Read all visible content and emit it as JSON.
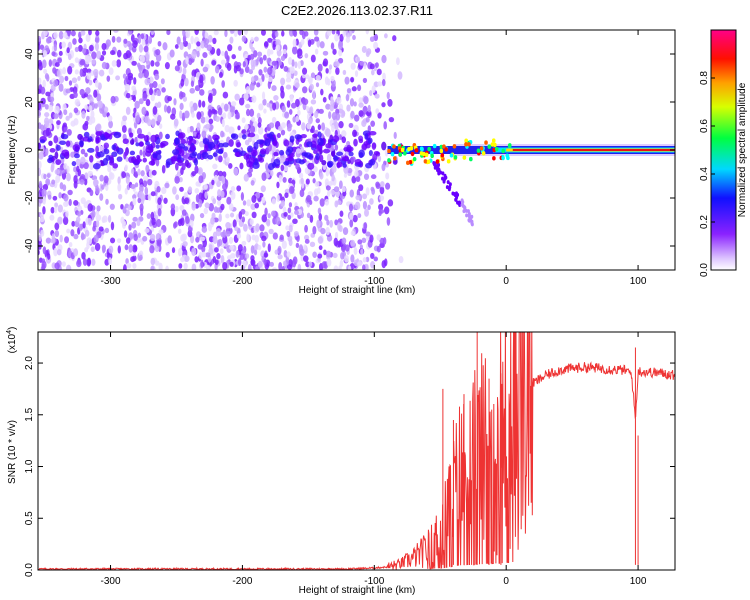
{
  "title": "C2E2.2026.113.02.37.R11",
  "chart_data": [
    {
      "type": "heatmap",
      "panel": "spectrogram",
      "xlabel": "Height of straight line (km)",
      "ylabel": "Frequency (Hz)",
      "xlim": [
        -355,
        128
      ],
      "ylim": [
        -50,
        50
      ],
      "xticks": [
        -300,
        -200,
        -100,
        0,
        100
      ],
      "xtick_labels": [
        "-300",
        "-200",
        "-100",
        "0",
        "100"
      ],
      "yticks": [
        -40,
        -20,
        0,
        20,
        40
      ],
      "ytick_labels": [
        "-40",
        "-20",
        "0",
        "20",
        "40"
      ],
      "colorbar": {
        "label": "Normalized spectral amplitude",
        "range": [
          0,
          1
        ],
        "ticks": [
          0.0,
          0.2,
          0.4,
          0.6,
          0.8
        ],
        "tick_labels": [
          "0.0",
          "0.2",
          "0.4",
          "0.6",
          "0.8"
        ],
        "colors": [
          "#ffffff",
          "#cc99ff",
          "#7f00ff",
          "#0000ff",
          "#00ffff",
          "#00ff00",
          "#ffff00",
          "#ff7f00",
          "#ff0000",
          "#ff007f"
        ]
      },
      "description_points": {
        "noise_region_x": [
          -355,
          -90
        ],
        "tone_x": [
          -90,
          128
        ],
        "tone_center_hz": 0,
        "branch_x": [
          -55,
          -25
        ],
        "branch_end_hz": -30
      }
    },
    {
      "type": "line",
      "panel": "snr",
      "xlabel": "Height of straight line (km)",
      "ylabel": "SNR (10 * v/v)",
      "yscale_label": "(x10",
      "yscale_exp": "4",
      "yscale_close": ")",
      "xlim": [
        -355,
        128
      ],
      "ylim": [
        0,
        2.3
      ],
      "xticks": [
        -300,
        -200,
        -100,
        0,
        100
      ],
      "xtick_labels": [
        "-300",
        "-200",
        "-100",
        "0",
        "100"
      ],
      "yticks": [
        0.0,
        0.5,
        1.0,
        1.5,
        2.0
      ],
      "ytick_labels": [
        "0.0",
        "0.5",
        "1.0",
        "1.5",
        "2.0"
      ],
      "line_color": "#ee3333",
      "series": [
        {
          "name": "SNR",
          "x": [
            -355,
            -300,
            -250,
            -200,
            -150,
            -120,
            -100,
            -90,
            -80,
            -70,
            -60,
            -50,
            -45,
            -40,
            -35,
            -30,
            -25,
            -20,
            -15,
            -10,
            -5,
            0,
            5,
            10,
            20,
            30,
            40,
            50,
            60,
            70,
            80,
            90,
            95,
            98,
            100,
            110,
            120,
            128
          ],
          "values": [
            0.01,
            0.01,
            0.01,
            0.01,
            0.01,
            0.01,
            0.02,
            0.03,
            0.06,
            0.12,
            0.2,
            0.35,
            0.55,
            0.7,
            0.9,
            0.95,
            1.0,
            1.1,
            1.2,
            1.25,
            1.3,
            1.4,
            1.55,
            1.65,
            1.8,
            1.88,
            1.93,
            1.95,
            1.96,
            1.95,
            1.94,
            1.93,
            1.9,
            1.45,
            1.92,
            1.91,
            1.9,
            1.88
          ]
        }
      ],
      "spikes": [
        {
          "x": -48,
          "y": 1.75
        },
        {
          "x": -40,
          "y": 1.45
        },
        {
          "x": -32,
          "y": 1.7
        },
        {
          "x": -22,
          "y": 2.3
        },
        {
          "x": -13,
          "y": 1.85
        },
        {
          "x": -4,
          "y": 1.9
        },
        {
          "x": 98,
          "y": 2.15
        },
        {
          "x": 100,
          "y": 1.3
        }
      ]
    }
  ]
}
